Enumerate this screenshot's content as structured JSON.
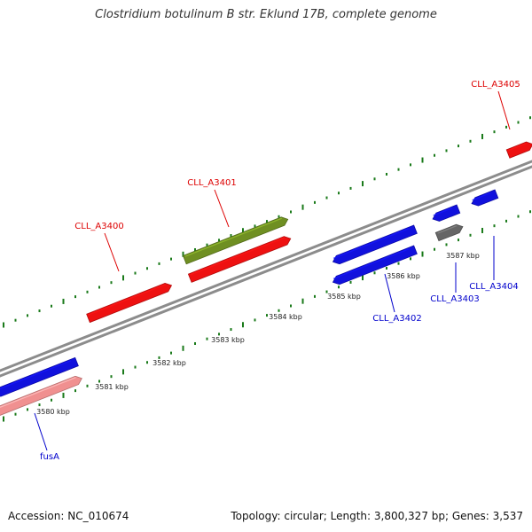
{
  "title": "Clostridium botulinum B str. Eklund 17B, complete genome",
  "footer": {
    "accession": "Accession: NC_010674",
    "summary": "Topology: circular; Length: 3,800,327 bp; Genes: 3,537"
  },
  "colors": {
    "backbone": "#8c8c8c",
    "tick": "#1a7a1a",
    "forward_gene": "#ee1111",
    "reverse_gene": "#1111dd",
    "highlight_gene": "#6f8f22",
    "pseudo_gene": "#666666",
    "faded_gene": "#f09090",
    "forward_label": "#dd0000",
    "reverse_label": "#0000cc"
  },
  "scale": {
    "unit": "kbp",
    "labels": [
      "3580 kbp",
      "3581 kbp",
      "3582 kbp",
      "3583 kbp",
      "3584 kbp",
      "3585 kbp",
      "3586 kbp",
      "3587 kbp"
    ]
  },
  "genes": [
    {
      "name": "CLL_A3400",
      "strand": "forward",
      "color_key": "forward_gene",
      "labeled": true
    },
    {
      "name": "CLL_A3401",
      "strand": "forward",
      "color_key": "highlight_gene",
      "labeled": true
    },
    {
      "name": "CLL_A3401",
      "strand": "forward",
      "color_key": "forward_gene",
      "labeled": false
    },
    {
      "name": "CLL_A3402",
      "strand": "reverse",
      "color_key": "reverse_gene",
      "labeled": true
    },
    {
      "name": "CLL_A3402",
      "strand": "reverse",
      "color_key": "reverse_gene",
      "labeled": false
    },
    {
      "name": "CLL_A3403",
      "strand": "reverse",
      "color_key": "pseudo_gene",
      "labeled": true
    },
    {
      "name": "CLL_A3403",
      "strand": "reverse",
      "color_key": "reverse_gene",
      "labeled": false
    },
    {
      "name": "CLL_A3404",
      "strand": "reverse",
      "color_key": "reverse_gene",
      "labeled": true
    },
    {
      "name": "CLL_A3405",
      "strand": "forward",
      "color_key": "forward_gene",
      "labeled": true
    },
    {
      "name": "fusA",
      "strand": "reverse",
      "color_key": "reverse_gene",
      "labeled": true
    },
    {
      "name": "fusA",
      "strand": "reverse",
      "color_key": "faded_gene",
      "labeled": false
    }
  ]
}
